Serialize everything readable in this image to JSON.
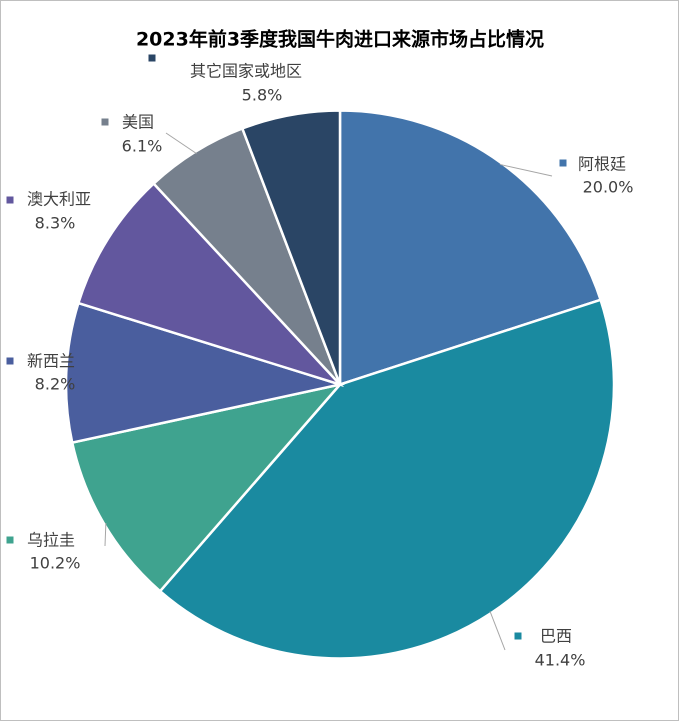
{
  "chart_data": {
    "type": "pie",
    "title": "2023年前3季度我国牛肉进口来源市场占比情况",
    "categories": [
      "阿根廷",
      "巴西",
      "乌拉圭",
      "新西兰",
      "澳大利亚",
      "美国",
      "其它国家或地区"
    ],
    "values": [
      20.0,
      41.4,
      10.2,
      8.2,
      8.3,
      6.1,
      5.8
    ],
    "value_labels": [
      "20.0%",
      "41.4%",
      "10.2%",
      "8.2%",
      "8.3%",
      "6.1%",
      "5.8%"
    ],
    "colors": [
      "#4274ab",
      "#1a8aa0",
      "#3fa38f",
      "#4a5e9e",
      "#62579e",
      "#76808d",
      "#2a4565"
    ]
  }
}
